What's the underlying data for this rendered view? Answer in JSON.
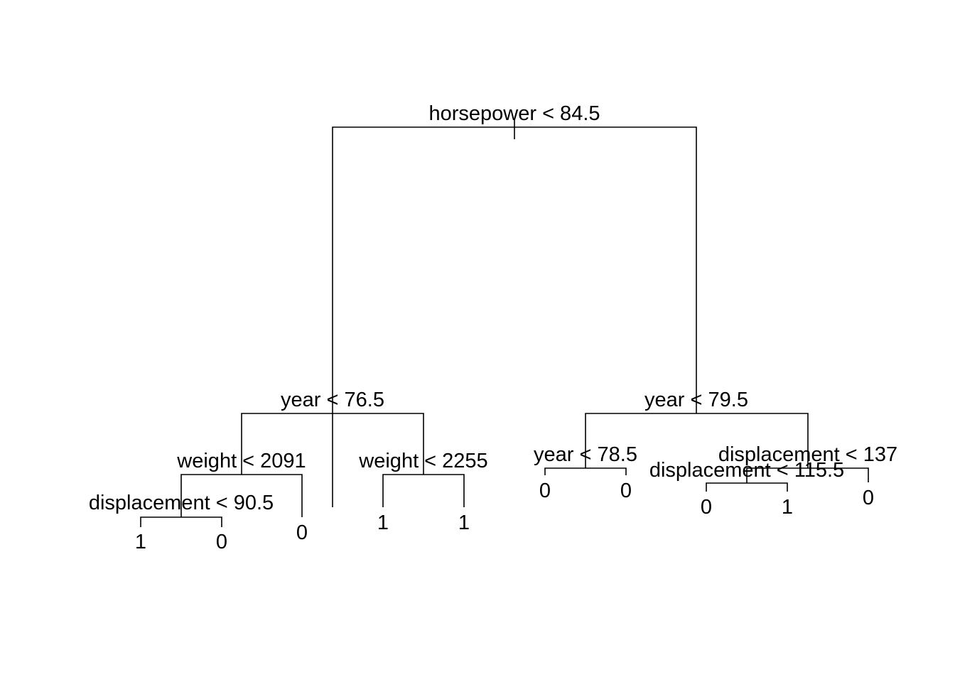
{
  "tree": {
    "root": {
      "label": "horsepower < 84.5",
      "left": {
        "label": "year < 76.5",
        "left": {
          "label": "weight < 2091",
          "left": {
            "label": "displacement < 90.5",
            "left": {
              "leaf": "1"
            },
            "right": {
              "leaf": "0"
            }
          },
          "right": {
            "leaf": "0"
          }
        },
        "right": {
          "label": "weight < 2255",
          "left": {
            "leaf": "1"
          },
          "right": {
            "leaf": "1"
          }
        }
      },
      "right": {
        "label": "year < 79.5",
        "left": {
          "label": "year < 78.5",
          "left": {
            "leaf": "0"
          },
          "right": {
            "leaf": "0"
          }
        },
        "right": {
          "label": "displacement < 137",
          "left": {
            "label": "displacement < 115.5",
            "left": {
              "leaf": "0"
            },
            "right": {
              "leaf": "1"
            }
          },
          "right": {
            "leaf": "0"
          }
        }
      }
    }
  }
}
